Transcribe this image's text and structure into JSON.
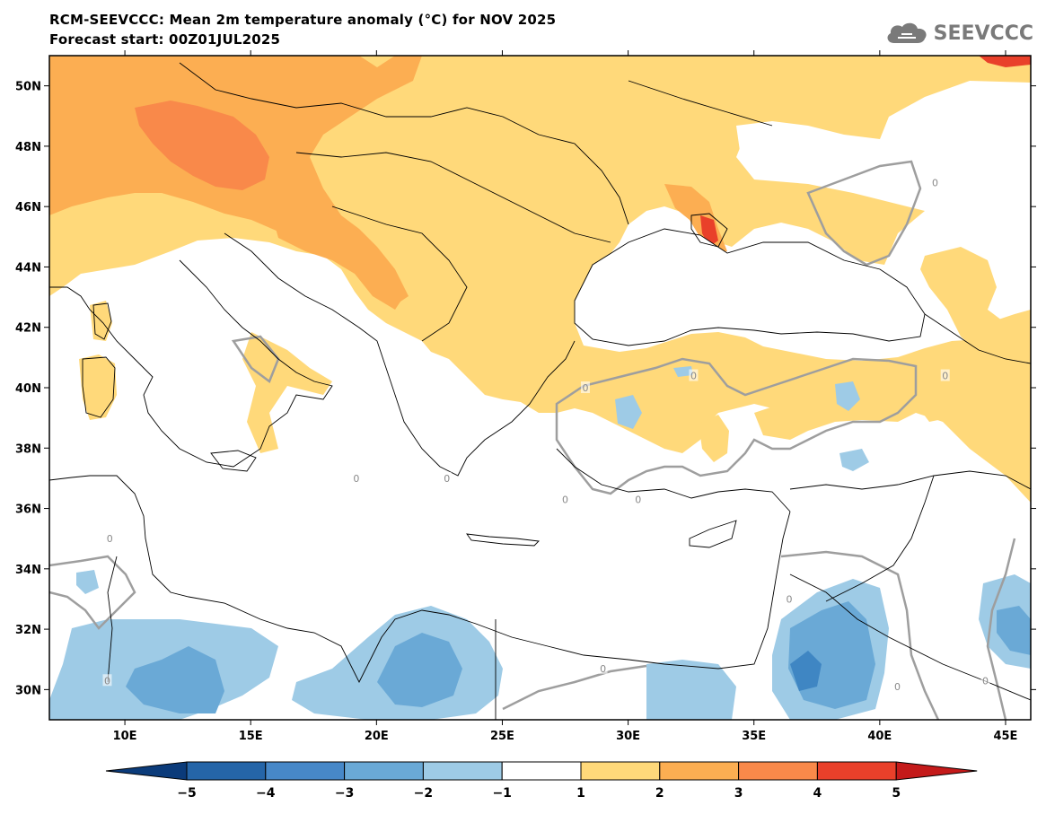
{
  "header": {
    "title": "RCM-SEEVCCC: Mean 2m temperature anomaly (°C) for NOV 2025",
    "subtitle": "Forecast start: 00Z01JUL2025",
    "logo_text": "SEEVCCC",
    "logo_icon": "cloud-icon"
  },
  "map": {
    "lat_labels": [
      "50N",
      "48N",
      "46N",
      "44N",
      "42N",
      "40N",
      "38N",
      "36N",
      "34N",
      "32N",
      "30N"
    ],
    "lat_values": [
      50,
      48,
      46,
      44,
      42,
      40,
      38,
      36,
      34,
      32,
      30
    ],
    "lon_labels": [
      "10E",
      "15E",
      "20E",
      "25E",
      "30E",
      "35E",
      "40E",
      "45E"
    ],
    "lon_values": [
      10,
      15,
      20,
      25,
      30,
      35,
      40,
      45
    ],
    "lon_range": [
      7,
      46
    ],
    "lat_range": [
      29,
      51
    ],
    "contour_label": "0",
    "colors": {
      "ocean": "#ffffff",
      "land_neutral": "#ffffff",
      "warm_1_2": "#ffd97a",
      "warm_2_3": "#fcae52",
      "warm_3_4": "#f9894a",
      "warm_4_5": "#e9402a",
      "cool_m2_m1": "#9ecbe6",
      "cool_m3_m2": "#6aa9d6",
      "cool_m4_m3": "#3f86c3",
      "contour": "#9e9e9e",
      "border": "#000000"
    }
  },
  "colorbar": {
    "labels": [
      "−5",
      "−4",
      "−3",
      "−2",
      "−1",
      "1",
      "2",
      "3",
      "4",
      "5"
    ],
    "colors": [
      "#0b3b7a",
      "#2565a8",
      "#4788c8",
      "#6aa9d6",
      "#9ecbe6",
      "#ffffff",
      "#ffd97a",
      "#fcae52",
      "#f9894a",
      "#e9402a",
      "#c41a1a"
    ]
  }
}
